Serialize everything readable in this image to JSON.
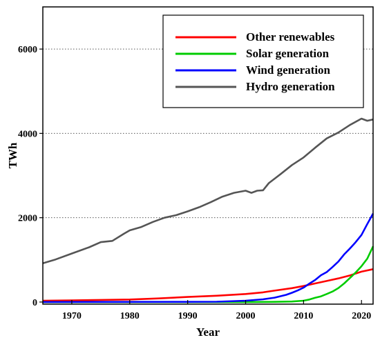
{
  "chart_data": {
    "type": "line",
    "xlabel": "Year",
    "ylabel": "TWh",
    "xlim": [
      1965,
      2022
    ],
    "ylim": [
      -50,
      7000
    ],
    "xticks": [
      1970,
      1980,
      1990,
      2000,
      2010,
      2020
    ],
    "yticks": [
      0,
      2000,
      4000,
      6000
    ],
    "grid": "horizontal-dotted",
    "legend_position": "top-right",
    "series": [
      {
        "name": "Other renewables",
        "color": "#ff0000",
        "x": [
          1965,
          1970,
          1975,
          1980,
          1985,
          1990,
          1995,
          2000,
          2003,
          2005,
          2008,
          2010,
          2012,
          2014,
          2016,
          2018,
          2020,
          2022
        ],
        "y": [
          30,
          40,
          50,
          60,
          85,
          120,
          150,
          190,
          230,
          270,
          330,
          380,
          440,
          500,
          560,
          630,
          720,
          780
        ]
      },
      {
        "name": "Solar generation",
        "color": "#00cc00",
        "x": [
          1965,
          1990,
          2000,
          2005,
          2008,
          2010,
          2011,
          2012,
          2013,
          2014,
          2015,
          2016,
          2017,
          2018,
          2019,
          2020,
          2021,
          2022
        ],
        "y": [
          0,
          0,
          1,
          4,
          12,
          32,
          60,
          100,
          135,
          190,
          250,
          330,
          440,
          570,
          700,
          850,
          1030,
          1320
        ]
      },
      {
        "name": "Wind generation",
        "color": "#0000ff",
        "x": [
          1965,
          1990,
          1995,
          2000,
          2003,
          2005,
          2007,
          2008,
          2009,
          2010,
          2011,
          2012,
          2013,
          2014,
          2015,
          2016,
          2017,
          2018,
          2019,
          2020,
          2021,
          2022
        ],
        "y": [
          0,
          4,
          8,
          31,
          64,
          104,
          171,
          220,
          276,
          342,
          437,
          522,
          636,
          710,
          830,
          960,
          1130,
          1270,
          1420,
          1590,
          1850,
          2100
        ]
      },
      {
        "name": "Hydro generation",
        "color": "#555555",
        "x": [
          1965,
          1967,
          1970,
          1973,
          1975,
          1977,
          1979,
          1980,
          1982,
          1984,
          1986,
          1988,
          1990,
          1992,
          1994,
          1996,
          1998,
          2000,
          2001,
          2002,
          2003,
          2004,
          2006,
          2008,
          2010,
          2012,
          2014,
          2016,
          2018,
          2020,
          2021,
          2022
        ],
        "y": [
          920,
          1000,
          1150,
          1300,
          1420,
          1450,
          1620,
          1700,
          1780,
          1900,
          2000,
          2060,
          2150,
          2250,
          2370,
          2500,
          2590,
          2640,
          2590,
          2640,
          2650,
          2820,
          3030,
          3250,
          3430,
          3660,
          3880,
          4020,
          4200,
          4350,
          4300,
          4330
        ]
      }
    ]
  }
}
